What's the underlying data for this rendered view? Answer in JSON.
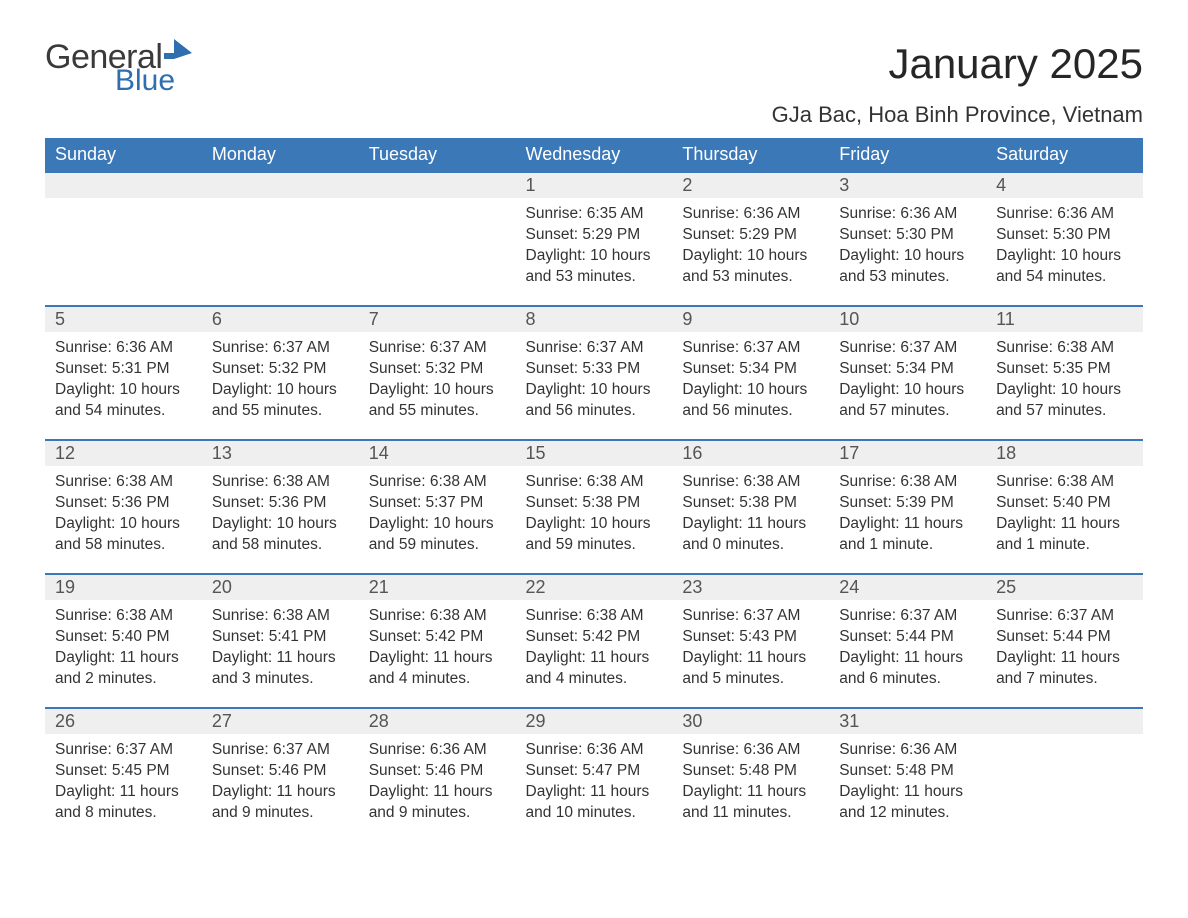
{
  "logo": {
    "general": "General",
    "blue": "Blue"
  },
  "title": "January 2025",
  "subtitle": "GJa Bac, Hoa Binh Province, Vietnam",
  "colors": {
    "header_bg": "#3b78b8",
    "header_text": "#ffffff",
    "daynum_bg": "#efefef",
    "daynum_border": "#3b78b8",
    "text": "#333333",
    "logo_blue": "#2f6fb0",
    "page_bg": "#ffffff"
  },
  "days_of_week": [
    "Sunday",
    "Monday",
    "Tuesday",
    "Wednesday",
    "Thursday",
    "Friday",
    "Saturday"
  ],
  "weeks": [
    [
      null,
      null,
      null,
      {
        "n": "1",
        "sunrise": "6:35 AM",
        "sunset": "5:29 PM",
        "daylight": "10 hours and 53 minutes."
      },
      {
        "n": "2",
        "sunrise": "6:36 AM",
        "sunset": "5:29 PM",
        "daylight": "10 hours and 53 minutes."
      },
      {
        "n": "3",
        "sunrise": "6:36 AM",
        "sunset": "5:30 PM",
        "daylight": "10 hours and 53 minutes."
      },
      {
        "n": "4",
        "sunrise": "6:36 AM",
        "sunset": "5:30 PM",
        "daylight": "10 hours and 54 minutes."
      }
    ],
    [
      {
        "n": "5",
        "sunrise": "6:36 AM",
        "sunset": "5:31 PM",
        "daylight": "10 hours and 54 minutes."
      },
      {
        "n": "6",
        "sunrise": "6:37 AM",
        "sunset": "5:32 PM",
        "daylight": "10 hours and 55 minutes."
      },
      {
        "n": "7",
        "sunrise": "6:37 AM",
        "sunset": "5:32 PM",
        "daylight": "10 hours and 55 minutes."
      },
      {
        "n": "8",
        "sunrise": "6:37 AM",
        "sunset": "5:33 PM",
        "daylight": "10 hours and 56 minutes."
      },
      {
        "n": "9",
        "sunrise": "6:37 AM",
        "sunset": "5:34 PM",
        "daylight": "10 hours and 56 minutes."
      },
      {
        "n": "10",
        "sunrise": "6:37 AM",
        "sunset": "5:34 PM",
        "daylight": "10 hours and 57 minutes."
      },
      {
        "n": "11",
        "sunrise": "6:38 AM",
        "sunset": "5:35 PM",
        "daylight": "10 hours and 57 minutes."
      }
    ],
    [
      {
        "n": "12",
        "sunrise": "6:38 AM",
        "sunset": "5:36 PM",
        "daylight": "10 hours and 58 minutes."
      },
      {
        "n": "13",
        "sunrise": "6:38 AM",
        "sunset": "5:36 PM",
        "daylight": "10 hours and 58 minutes."
      },
      {
        "n": "14",
        "sunrise": "6:38 AM",
        "sunset": "5:37 PM",
        "daylight": "10 hours and 59 minutes."
      },
      {
        "n": "15",
        "sunrise": "6:38 AM",
        "sunset": "5:38 PM",
        "daylight": "10 hours and 59 minutes."
      },
      {
        "n": "16",
        "sunrise": "6:38 AM",
        "sunset": "5:38 PM",
        "daylight": "11 hours and 0 minutes."
      },
      {
        "n": "17",
        "sunrise": "6:38 AM",
        "sunset": "5:39 PM",
        "daylight": "11 hours and 1 minute."
      },
      {
        "n": "18",
        "sunrise": "6:38 AM",
        "sunset": "5:40 PM",
        "daylight": "11 hours and 1 minute."
      }
    ],
    [
      {
        "n": "19",
        "sunrise": "6:38 AM",
        "sunset": "5:40 PM",
        "daylight": "11 hours and 2 minutes."
      },
      {
        "n": "20",
        "sunrise": "6:38 AM",
        "sunset": "5:41 PM",
        "daylight": "11 hours and 3 minutes."
      },
      {
        "n": "21",
        "sunrise": "6:38 AM",
        "sunset": "5:42 PM",
        "daylight": "11 hours and 4 minutes."
      },
      {
        "n": "22",
        "sunrise": "6:38 AM",
        "sunset": "5:42 PM",
        "daylight": "11 hours and 4 minutes."
      },
      {
        "n": "23",
        "sunrise": "6:37 AM",
        "sunset": "5:43 PM",
        "daylight": "11 hours and 5 minutes."
      },
      {
        "n": "24",
        "sunrise": "6:37 AM",
        "sunset": "5:44 PM",
        "daylight": "11 hours and 6 minutes."
      },
      {
        "n": "25",
        "sunrise": "6:37 AM",
        "sunset": "5:44 PM",
        "daylight": "11 hours and 7 minutes."
      }
    ],
    [
      {
        "n": "26",
        "sunrise": "6:37 AM",
        "sunset": "5:45 PM",
        "daylight": "11 hours and 8 minutes."
      },
      {
        "n": "27",
        "sunrise": "6:37 AM",
        "sunset": "5:46 PM",
        "daylight": "11 hours and 9 minutes."
      },
      {
        "n": "28",
        "sunrise": "6:36 AM",
        "sunset": "5:46 PM",
        "daylight": "11 hours and 9 minutes."
      },
      {
        "n": "29",
        "sunrise": "6:36 AM",
        "sunset": "5:47 PM",
        "daylight": "11 hours and 10 minutes."
      },
      {
        "n": "30",
        "sunrise": "6:36 AM",
        "sunset": "5:48 PM",
        "daylight": "11 hours and 11 minutes."
      },
      {
        "n": "31",
        "sunrise": "6:36 AM",
        "sunset": "5:48 PM",
        "daylight": "11 hours and 12 minutes."
      },
      null
    ]
  ],
  "labels": {
    "sunrise": "Sunrise: ",
    "sunset": "Sunset: ",
    "daylight": "Daylight: "
  }
}
